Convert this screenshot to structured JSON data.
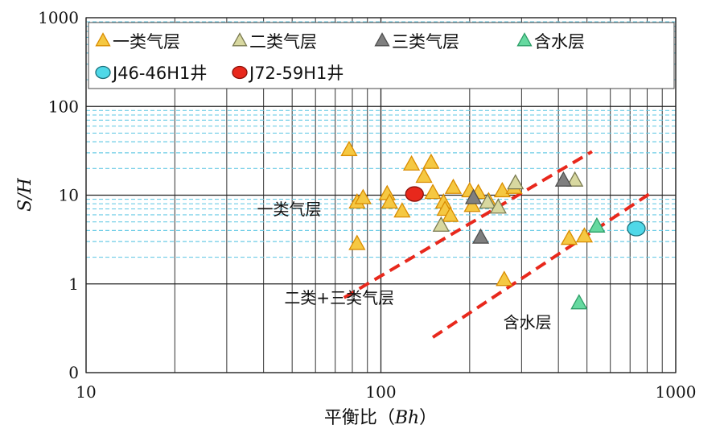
{
  "chart_data": {
    "type": "scatter",
    "title": "",
    "xlabel_main": "平衡比（",
    "xlabel_var": "Bh",
    "xlabel_close": "）",
    "ylabel": "S/H",
    "x_scale": "log",
    "y_scale": "log",
    "xlim": [
      10,
      1000
    ],
    "ylim": [
      0.1,
      1000
    ],
    "x_tick_labels": [
      "10",
      "100",
      "1000"
    ],
    "x_tick_values": [
      10,
      100,
      1000
    ],
    "y_tick_labels": [
      "0",
      "1",
      "10",
      "100",
      "1000"
    ],
    "y_tick_values": [
      0.1,
      1,
      10,
      100,
      1000
    ],
    "grid": true,
    "legend_position": "top",
    "series": [
      {
        "name": "一类气层",
        "marker": "triangle",
        "color": "#f5c842",
        "edge": "#d98c00",
        "points": [
          [
            78,
            32
          ],
          [
            83,
            8.2
          ],
          [
            83,
            2.8
          ],
          [
            87,
            9.2
          ],
          [
            105,
            10.2
          ],
          [
            107,
            8.2
          ],
          [
            118,
            6.5
          ],
          [
            127,
            22
          ],
          [
            140,
            16
          ],
          [
            148,
            23
          ],
          [
            150,
            10.5
          ],
          [
            163,
            8.2
          ],
          [
            165,
            6.8
          ],
          [
            172,
            5.8
          ],
          [
            176,
            12
          ],
          [
            200,
            11
          ],
          [
            204,
            7.5
          ],
          [
            214,
            10.5
          ],
          [
            232,
            8.5
          ],
          [
            258,
            11
          ],
          [
            262,
            1.1
          ],
          [
            283,
            12
          ],
          [
            435,
            3.2
          ],
          [
            490,
            3.4
          ]
        ]
      },
      {
        "name": "二类气层",
        "marker": "triangle",
        "color": "#d8d8a0",
        "edge": "#7a7a50",
        "points": [
          [
            160,
            4.5
          ],
          [
            230,
            8.2
          ],
          [
            250,
            7.2
          ],
          [
            286,
            13.5
          ],
          [
            455,
            14.5
          ]
        ]
      },
      {
        "name": "三类气层",
        "marker": "triangle",
        "color": "#7f7f7f",
        "edge": "#4f4f4f",
        "points": [
          [
            206,
            9.2
          ],
          [
            218,
            3.3
          ],
          [
            416,
            14.5
          ]
        ]
      },
      {
        "name": "含水层",
        "marker": "triangle",
        "color": "#66d9a0",
        "edge": "#2e9e68",
        "points": [
          [
            470,
            0.6
          ],
          [
            540,
            4.4
          ]
        ]
      },
      {
        "name": "J46-46H1井",
        "marker": "circle",
        "color": "#4fd8e8",
        "edge": "#1a6f7a",
        "points": [
          [
            735,
            4.2
          ]
        ]
      },
      {
        "name": "J72-59H1井",
        "marker": "circle",
        "color": "#e8281c",
        "edge": "#8a1008",
        "points": [
          [
            130,
            10.3
          ]
        ]
      }
    ],
    "boundaries": [
      {
        "color": "#e8281c",
        "style": "dashed",
        "from": [
          75,
          0.7
        ],
        "to": [
          520,
          31
        ]
      },
      {
        "color": "#e8281c",
        "style": "dashed",
        "from": [
          150,
          0.25
        ],
        "to": [
          820,
          10.5
        ]
      }
    ],
    "annotations": [
      {
        "text": "一类气层",
        "at": [
          38,
          6.0
        ]
      },
      {
        "text": "二类+三类气层",
        "at": [
          47,
          0.6
        ]
      },
      {
        "text": "含水层",
        "at": [
          260,
          0.32
        ]
      }
    ]
  }
}
